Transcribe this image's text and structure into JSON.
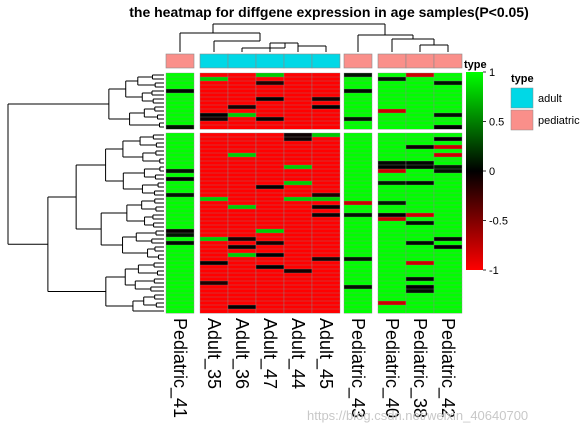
{
  "chart_data": {
    "type": "heatmap",
    "title": "the heatmap for diffgene expression in age samples(P<0.05)",
    "columns": [
      "Pediatric_41",
      "Adult_35",
      "Adult_36",
      "Adult_47",
      "Adult_44",
      "Adult_45",
      "Pediatric_43",
      "Pediatric_40",
      "Pediatric_38",
      "Pediatric_42"
    ],
    "column_type": [
      "pediatric",
      "adult",
      "adult",
      "adult",
      "adult",
      "adult",
      "pediatric",
      "pediatric",
      "pediatric",
      "pediatric"
    ],
    "column_groups": [
      [
        0
      ],
      [
        1,
        2,
        3,
        4,
        5
      ],
      [
        6
      ],
      [
        7,
        8,
        9
      ]
    ],
    "row_groups_count": [
      14,
      45
    ],
    "values_summary": {
      "adult_columns": "predominantly -1 (low expression), sparse values near 0 and +1",
      "pediatric_columns": "predominantly +1 (high expression), sparse values near 0"
    },
    "color_scale": {
      "min": -1,
      "max": 1,
      "ticks": [
        1,
        0.5,
        0,
        -0.5,
        -1
      ],
      "colors": [
        "#ff0000",
        "#000000",
        "#00ff00"
      ]
    },
    "legend": {
      "scale_title": "type",
      "annotation_title": "type",
      "items": [
        {
          "label": "adult",
          "color": "#00d8e6"
        },
        {
          "label": "pediatric",
          "color": "#fa8f8a"
        }
      ]
    }
  },
  "watermark": "https://blog.csdn.net/weixin_40640700"
}
